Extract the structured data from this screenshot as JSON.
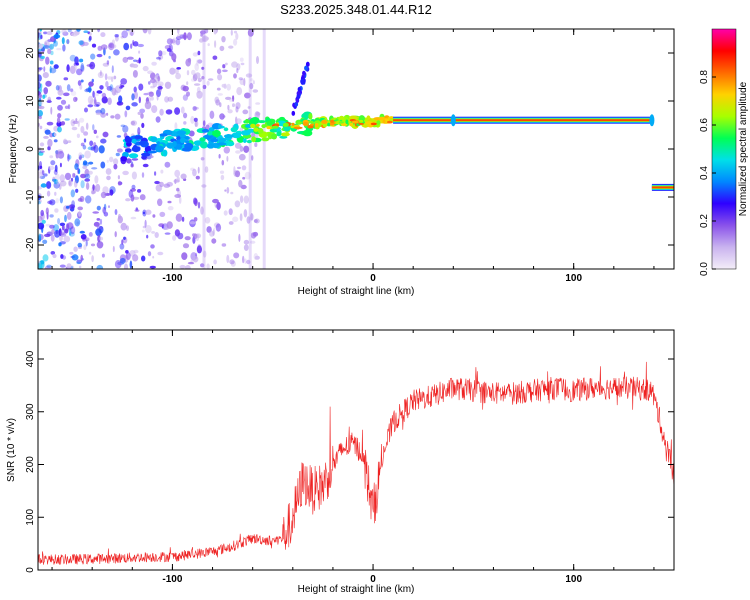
{
  "title": "S233.2025.348.01.44.R12",
  "chart_data": [
    {
      "type": "heatmap",
      "title": "S233.2025.348.01.44.R12",
      "xlabel": "Height of straight line (km)",
      "ylabel": "Frequency (Hz)",
      "xlim": [
        -167,
        150
      ],
      "ylim": [
        -25,
        25
      ],
      "xticks": [
        -100,
        0,
        100
      ],
      "yticks": [
        20,
        10,
        0,
        -10,
        -20
      ],
      "colorbar": {
        "label": "Normalized spectral amplitude",
        "range": [
          0,
          1
        ],
        "ticks": [
          0.0,
          0.2,
          0.4,
          0.6,
          0.8
        ],
        "tick_labels": [
          "0.0",
          "0.2",
          "0.4",
          "0.6",
          "0.8"
        ],
        "colors": [
          "#f4eef8",
          "#c9b3ef",
          "#8a52ea",
          "#2e00ff",
          "#0088ff",
          "#00e0e8",
          "#00ff55",
          "#a8ff00",
          "#ffd200",
          "#ff6a00",
          "#ff0000",
          "#ff00aa"
        ]
      },
      "features": [
        {
          "name": "steady tone",
          "x_from": 10,
          "x_to": 139,
          "frequency": 6,
          "amplitude": 0.85
        },
        {
          "name": "rising trace",
          "x_from": -125,
          "x_to": 10,
          "frequency_from": 0,
          "frequency_to": 6
        },
        {
          "name": "late tone",
          "x_from": 139,
          "x_to": 150,
          "frequency": -8,
          "amplitude": 0.8
        }
      ]
    },
    {
      "type": "line",
      "xlabel": "Height of straight line (km)",
      "ylabel": "SNR (10 * v/v)",
      "xlim": [
        -167,
        150
      ],
      "ylim": [
        0,
        455
      ],
      "xticks": [
        -100,
        0,
        100
      ],
      "yticks": [
        0,
        100,
        200,
        300,
        400
      ],
      "color": "#ee2222",
      "series": [
        {
          "name": "SNR",
          "x": [
            -167,
            -150,
            -130,
            -110,
            -100,
            -90,
            -80,
            -70,
            -60,
            -50,
            -45,
            -40,
            -35,
            -30,
            -25,
            -20,
            -15,
            -10,
            -5,
            0,
            5,
            10,
            15,
            20,
            30,
            40,
            50,
            60,
            70,
            80,
            90,
            100,
            110,
            120,
            130,
            139,
            142,
            145,
            148,
            150
          ],
          "y": [
            20,
            20,
            22,
            25,
            25,
            30,
            35,
            45,
            60,
            55,
            60,
            100,
            170,
            150,
            160,
            200,
            230,
            240,
            220,
            110,
            220,
            280,
            300,
            320,
            330,
            345,
            340,
            335,
            335,
            340,
            345,
            340,
            345,
            345,
            345,
            340,
            300,
            250,
            210,
            190
          ]
        }
      ]
    }
  ]
}
